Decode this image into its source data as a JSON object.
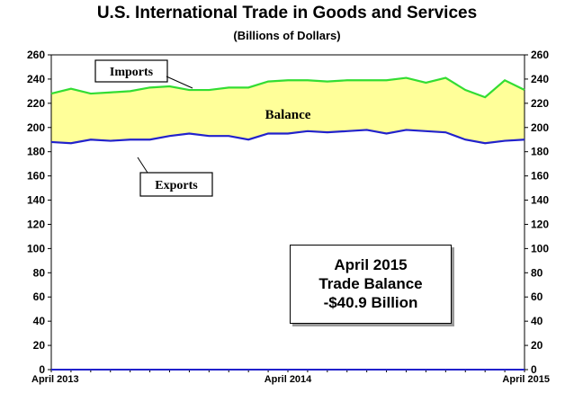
{
  "chart_data": {
    "type": "area",
    "title": "U.S. International Trade in Goods and Services",
    "subtitle": "(Billions of Dollars)",
    "xlabel": "",
    "ylabel": "",
    "ylim": [
      0,
      260
    ],
    "yticks": [
      "0",
      "20",
      "40",
      "60",
      "80",
      "100",
      "120",
      "140",
      "160",
      "180",
      "200",
      "220",
      "240",
      "260"
    ],
    "x_tick_labels": [
      "April 2013",
      "April 2014",
      "April 2015"
    ],
    "x": [
      "Apr 2013",
      "May 2013",
      "Jun 2013",
      "Jul 2013",
      "Aug 2013",
      "Sep 2013",
      "Oct 2013",
      "Nov 2013",
      "Dec 2013",
      "Jan 2014",
      "Feb 2014",
      "Mar 2014",
      "Apr 2014",
      "May 2014",
      "Jun 2014",
      "Jul 2014",
      "Aug 2014",
      "Sep 2014",
      "Oct 2014",
      "Nov 2014",
      "Dec 2014",
      "Jan 2015",
      "Feb 2015",
      "Mar 2015",
      "Apr 2015"
    ],
    "series": [
      {
        "name": "Imports",
        "color": "#33dd33",
        "values": [
          228,
          232,
          228,
          229,
          230,
          233,
          234,
          231,
          231,
          233,
          233,
          238,
          239,
          239,
          238,
          239,
          239,
          239,
          241,
          237,
          241,
          231,
          225,
          239,
          231
        ]
      },
      {
        "name": "Exports",
        "color": "#2222cc",
        "values": [
          188,
          187,
          190,
          189,
          190,
          190,
          193,
          195,
          193,
          193,
          190,
          195,
          195,
          197,
          196,
          197,
          198,
          195,
          198,
          197,
          196,
          190,
          187,
          189,
          190
        ]
      }
    ],
    "fill_color": "#ffff99",
    "annotations": {
      "imports_label": "Imports",
      "exports_label": "Exports",
      "balance_label": "Balance",
      "box_line1": "April 2015",
      "box_line2": "Trade Balance",
      "box_line3": "-$40.9 Billion"
    },
    "grid": false,
    "legend": "none"
  }
}
